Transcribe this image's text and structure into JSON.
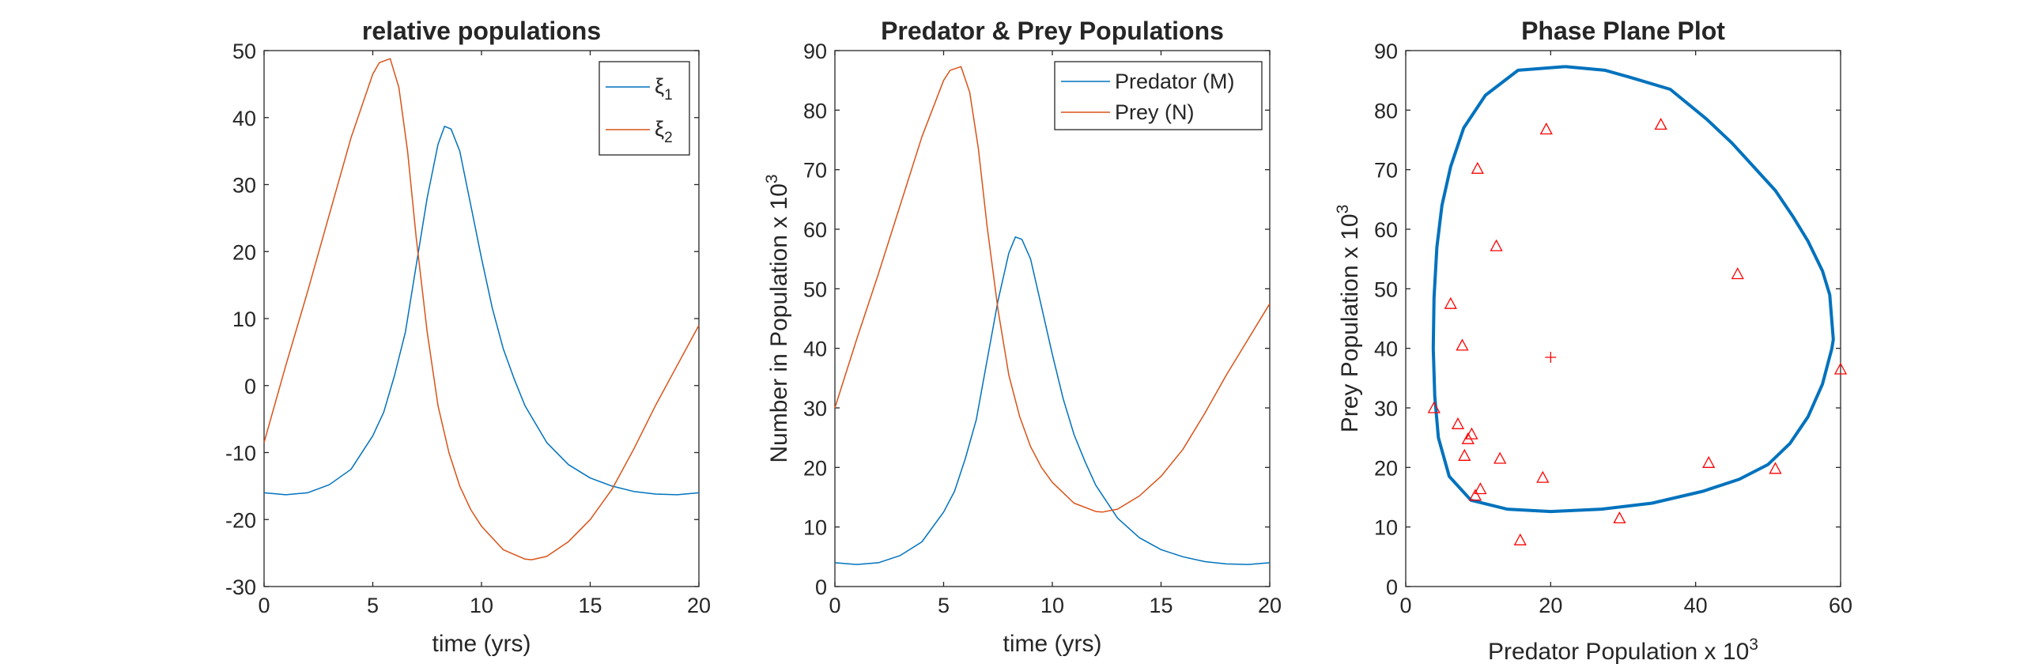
{
  "colors": {
    "blue": "#0072BD",
    "orange": "#D95319",
    "red": "#FF0000",
    "axis": "#262626"
  },
  "chart_data": [
    {
      "type": "line",
      "title": "relative populations",
      "xlabel": "time (yrs)",
      "ylabel": "",
      "xlim": [
        0,
        20
      ],
      "ylim": [
        -30,
        50
      ],
      "xticks": [
        0,
        5,
        10,
        15,
        20
      ],
      "yticks": [
        -30,
        -20,
        -10,
        0,
        10,
        20,
        30,
        40,
        50
      ],
      "legend_position": "top-right",
      "grid": false,
      "series": [
        {
          "name": "ξ1",
          "legend_base": "ξ",
          "legend_sub": "1",
          "color": "#0072BD",
          "x": [
            0,
            1,
            2,
            3,
            4,
            5,
            5.5,
            6,
            6.5,
            7,
            7.5,
            8,
            8.3,
            8.6,
            9,
            9.5,
            10,
            10.5,
            11,
            11.5,
            12,
            13,
            14,
            15,
            16,
            17,
            18,
            19,
            20
          ],
          "y": [
            -16,
            -16.3,
            -16,
            -14.8,
            -12.5,
            -7.5,
            -4,
            1.5,
            8,
            18,
            28,
            36,
            38.7,
            38.3,
            35,
            27,
            19,
            11.5,
            5.5,
            1,
            -3,
            -8.5,
            -11.8,
            -13.8,
            -15,
            -15.8,
            -16.2,
            -16.3,
            -16
          ]
        },
        {
          "name": "ξ2",
          "legend_base": "ξ",
          "legend_sub": "2",
          "color": "#D95319",
          "x": [
            0,
            1,
            2,
            3,
            4,
            5,
            5.3,
            5.8,
            6.2,
            6.6,
            7,
            7.5,
            8,
            8.5,
            9,
            9.5,
            10,
            11,
            12,
            12.3,
            13,
            14,
            15,
            16,
            17,
            18,
            19,
            20
          ],
          "y": [
            -8.5,
            3,
            14,
            25.5,
            37,
            46.5,
            48.2,
            48.8,
            44.5,
            35,
            22,
            8,
            -3,
            -10,
            -15,
            -18.5,
            -21,
            -24.5,
            -25.9,
            -26,
            -25.5,
            -23.3,
            -20,
            -15.5,
            -9.5,
            -3,
            3,
            9
          ]
        }
      ]
    },
    {
      "type": "line",
      "title": "Predator & Prey Populations",
      "xlabel": "time (yrs)",
      "ylabel": "Number in Population x 10",
      "ylabel_sup": "3",
      "xlim": [
        0,
        20
      ],
      "ylim": [
        0,
        90
      ],
      "xticks": [
        0,
        5,
        10,
        15,
        20
      ],
      "yticks": [
        0,
        10,
        20,
        30,
        40,
        50,
        60,
        70,
        80,
        90
      ],
      "legend_position": "top-right",
      "grid": false,
      "series": [
        {
          "name": "Predator (M)",
          "color": "#0072BD",
          "x": [
            0,
            1,
            2,
            3,
            4,
            5,
            5.5,
            6,
            6.5,
            7,
            7.5,
            8,
            8.3,
            8.6,
            9,
            9.5,
            10,
            10.5,
            11,
            11.5,
            12,
            13,
            14,
            15,
            16,
            17,
            18,
            19,
            20
          ],
          "y": [
            4,
            3.7,
            4,
            5.2,
            7.5,
            12.5,
            16,
            21.5,
            28,
            38,
            48,
            56,
            58.7,
            58.3,
            55,
            47,
            39,
            31.5,
            25.5,
            21,
            17,
            11.5,
            8.2,
            6.2,
            5,
            4.2,
            3.8,
            3.7,
            4
          ]
        },
        {
          "name": "Prey (N)",
          "color": "#D95319",
          "x": [
            0,
            1,
            2,
            3,
            4,
            5,
            5.3,
            5.8,
            6.2,
            6.6,
            7,
            7.5,
            8,
            8.5,
            9,
            9.5,
            10,
            11,
            12,
            12.3,
            13,
            14,
            15,
            16,
            17,
            18,
            19,
            20
          ],
          "y": [
            30,
            41.5,
            52.5,
            64,
            75.5,
            85,
            86.7,
            87.3,
            83,
            73.5,
            60.5,
            46.5,
            35.5,
            28.5,
            23.5,
            20,
            17.5,
            14,
            12.6,
            12.5,
            13,
            15.2,
            18.5,
            23,
            29,
            35.5,
            41.5,
            47.5
          ]
        }
      ]
    },
    {
      "type": "scatter",
      "title": "Phase Plane Plot",
      "xlabel": "Predator Population x 10",
      "xlabel_sup": "3",
      "ylabel": "Prey Population x 10",
      "ylabel_sup": "3",
      "xlim": [
        0,
        60
      ],
      "ylim": [
        0,
        90
      ],
      "xticks": [
        0,
        20,
        40,
        60
      ],
      "yticks": [
        0,
        10,
        20,
        30,
        40,
        50,
        60,
        70,
        80,
        90
      ],
      "grid": false,
      "trajectory": {
        "color": "#0072BD",
        "x": [
          22,
          15.5,
          11,
          8,
          6.2,
          5,
          4.3,
          3.9,
          3.8,
          4,
          4.5,
          6,
          9,
          14,
          20,
          27,
          34,
          41,
          46,
          50,
          53,
          55.5,
          57.5,
          58.8,
          59,
          58.5,
          57.5,
          55.5,
          53.5,
          51,
          48,
          45,
          41.5,
          36.5,
          31,
          27.5,
          22
        ],
        "y": [
          87.3,
          86.7,
          82.5,
          77,
          70.5,
          64,
          57,
          48.5,
          40,
          32,
          25,
          18.5,
          14.5,
          13,
          12.6,
          13,
          14,
          16,
          18,
          20.5,
          24,
          28.5,
          34,
          40,
          41.5,
          49,
          53,
          58,
          62,
          66.5,
          70.5,
          74.5,
          78.5,
          83.5,
          85.5,
          86.7,
          87.3
        ]
      },
      "points": {
        "marker": "triangle",
        "color": "#FF0000",
        "x": [
          3.9,
          6.2,
          7.2,
          7.8,
          8.1,
          8.6,
          9.1,
          9.6,
          9.9,
          10.3,
          12.5,
          13.0,
          15.8,
          18.9,
          19.4,
          29.5,
          35.2,
          41.8,
          45.8,
          51.0,
          60.0
        ],
        "y": [
          30.0,
          47.5,
          27.3,
          40.5,
          22.0,
          24.8,
          25.6,
          15.3,
          70.2,
          16.4,
          57.2,
          21.5,
          7.8,
          18.3,
          76.8,
          11.5,
          77.6,
          20.8,
          52.5,
          19.8,
          36.5
        ]
      },
      "equilibrium": {
        "marker": "plus",
        "color": "#FF0000",
        "x": 20,
        "y": 38.5
      }
    }
  ]
}
